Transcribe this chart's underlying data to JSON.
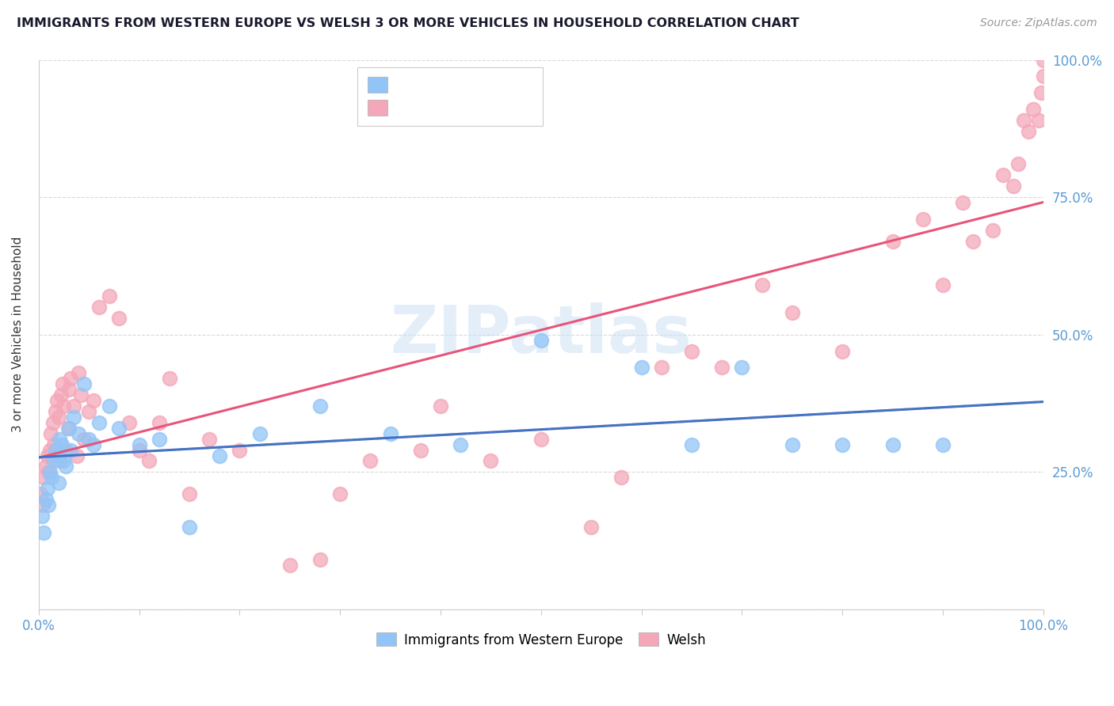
{
  "title": "IMMIGRANTS FROM WESTERN EUROPE VS WELSH 3 OR MORE VEHICLES IN HOUSEHOLD CORRELATION CHART",
  "source": "Source: ZipAtlas.com",
  "ylabel": "3 or more Vehicles in Household",
  "legend_blue_label": "Immigrants from Western Europe",
  "legend_pink_label": "Welsh",
  "blue_color": "#92c5f7",
  "blue_fill": "#aad4f5",
  "pink_color": "#f4a7b9",
  "pink_fill": "#f9c6d0",
  "blue_line_color": "#4472c4",
  "pink_line_color": "#e8547a",
  "gray_dash_color": "#b0b0b0",
  "watermark_color": "#c8dff5",
  "blue_scatter_x": [
    0.3,
    0.5,
    0.7,
    0.9,
    1.0,
    1.1,
    1.3,
    1.5,
    1.7,
    1.9,
    2.0,
    2.1,
    2.3,
    2.5,
    2.7,
    3.0,
    3.2,
    3.5,
    4.0,
    4.5,
    5.0,
    5.5,
    6.0,
    7.0,
    8.0,
    10.0,
    12.0,
    15.0,
    18.0,
    22.0,
    28.0,
    35.0,
    42.0,
    50.0,
    60.0,
    65.0,
    70.0,
    75.0,
    80.0,
    85.0,
    90.0
  ],
  "blue_scatter_y": [
    17.0,
    14.0,
    20.0,
    22.0,
    19.0,
    25.0,
    24.0,
    27.0,
    29.0,
    28.0,
    23.0,
    31.0,
    30.0,
    27.0,
    26.0,
    33.0,
    29.0,
    35.0,
    32.0,
    41.0,
    31.0,
    30.0,
    34.0,
    37.0,
    33.0,
    30.0,
    31.0,
    15.0,
    28.0,
    32.0,
    37.0,
    32.0,
    30.0,
    49.0,
    44.0,
    30.0,
    44.0,
    30.0,
    30.0,
    30.0,
    30.0
  ],
  "pink_scatter_x": [
    0.2,
    0.4,
    0.5,
    0.7,
    0.9,
    1.0,
    1.1,
    1.2,
    1.4,
    1.5,
    1.7,
    1.8,
    2.0,
    2.1,
    2.2,
    2.4,
    2.5,
    2.7,
    2.9,
    3.0,
    3.2,
    3.5,
    3.8,
    4.0,
    4.2,
    4.5,
    5.0,
    5.5,
    6.0,
    7.0,
    8.0,
    9.0,
    10.0,
    11.0,
    12.0,
    13.0,
    15.0,
    17.0,
    20.0,
    25.0,
    28.0,
    30.0,
    33.0,
    38.0,
    40.0,
    45.0,
    50.0,
    55.0,
    58.0,
    62.0,
    65.0,
    68.0,
    72.0,
    75.0,
    80.0,
    85.0,
    88.0,
    90.0,
    92.0,
    93.0,
    95.0,
    96.0,
    97.0,
    97.5,
    98.0,
    98.5,
    99.0,
    99.5,
    99.8,
    100.0,
    100.0
  ],
  "pink_scatter_y": [
    21.0,
    19.0,
    24.0,
    26.0,
    28.0,
    25.0,
    29.0,
    32.0,
    34.0,
    30.0,
    36.0,
    38.0,
    35.0,
    27.0,
    39.0,
    41.0,
    37.0,
    29.0,
    33.0,
    40.0,
    42.0,
    37.0,
    28.0,
    43.0,
    39.0,
    31.0,
    36.0,
    38.0,
    55.0,
    57.0,
    53.0,
    34.0,
    29.0,
    27.0,
    34.0,
    42.0,
    21.0,
    31.0,
    29.0,
    8.0,
    9.0,
    21.0,
    27.0,
    29.0,
    37.0,
    27.0,
    31.0,
    15.0,
    24.0,
    44.0,
    47.0,
    44.0,
    59.0,
    54.0,
    47.0,
    67.0,
    71.0,
    59.0,
    74.0,
    67.0,
    69.0,
    79.0,
    77.0,
    81.0,
    89.0,
    87.0,
    91.0,
    89.0,
    94.0,
    97.0,
    100.0
  ],
  "xmin": 0.0,
  "xmax": 100.0,
  "ymin": 0.0,
  "ymax": 100.0,
  "xtick_positions": [
    0,
    10,
    20,
    30,
    40,
    50,
    60,
    70,
    80,
    90,
    100
  ],
  "ytick_positions": [
    0,
    25,
    50,
    75,
    100
  ]
}
